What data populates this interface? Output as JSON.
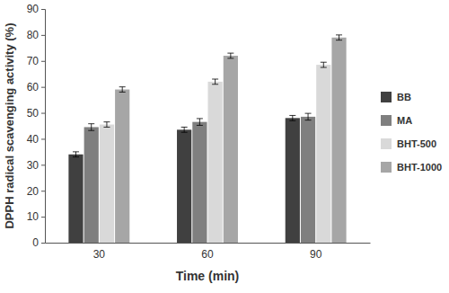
{
  "chart_data": {
    "type": "bar",
    "x_label": "Time (min)",
    "y_label": "DPPH radical scavenging activity (%)",
    "categories": [
      "30",
      "60",
      "90"
    ],
    "series": [
      {
        "name": "BB",
        "color": "#404040",
        "values": [
          34,
          43.5,
          48
        ],
        "errors": [
          1,
          1,
          1
        ]
      },
      {
        "name": "MA",
        "color": "#7f7f7f",
        "values": [
          44.5,
          46.5,
          48.5
        ],
        "errors": [
          1.3,
          1.3,
          1.3
        ]
      },
      {
        "name": "BHT-500",
        "color": "#d9d9d9",
        "values": [
          45.5,
          62,
          68.5
        ],
        "errors": [
          1,
          1,
          1
        ]
      },
      {
        "name": "BHT-1000",
        "color": "#a6a6a6",
        "values": [
          59,
          72,
          79
        ],
        "errors": [
          1,
          1,
          1
        ]
      }
    ],
    "ylim": [
      0,
      90
    ],
    "yticks": [
      0,
      10,
      20,
      30,
      40,
      50,
      60,
      70,
      80,
      90
    ],
    "grid": false,
    "legend": "right"
  }
}
